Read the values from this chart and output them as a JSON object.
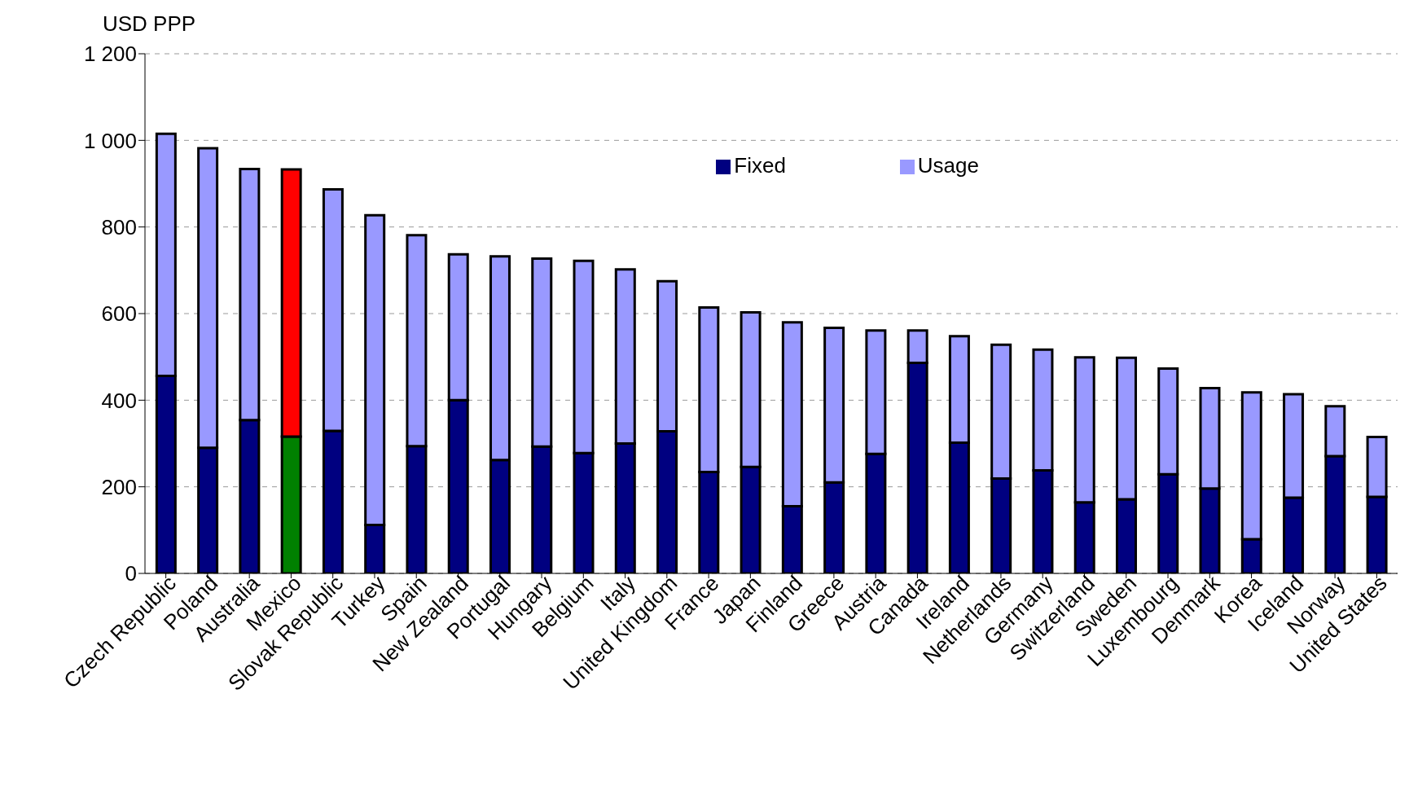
{
  "chart_data": {
    "type": "bar",
    "stacked": true,
    "ylabel": "USD PPP",
    "categories": [
      "Czech Republic",
      "Poland",
      "Australia",
      "Mexico",
      "Slovak Republic",
      "Turkey",
      "Spain",
      "New Zealand",
      "Portugal",
      "Hungary",
      "Belgium",
      "Italy",
      "United Kingdom",
      "France",
      "Japan",
      "Finland",
      "Greece",
      "Austria",
      "Canada",
      "Ireland",
      "Netherlands",
      "Germany",
      "Switzerland",
      "Sweden",
      "Luxembourg",
      "Denmark",
      "Korea",
      "Iceland",
      "Norway",
      "United States"
    ],
    "series": [
      {
        "name": "Fixed",
        "color": "#000080",
        "colors": [
          "#000080",
          "#000080",
          "#000080",
          "#008000",
          "#000080",
          "#000080",
          "#000080",
          "#000080",
          "#000080",
          "#000080",
          "#000080",
          "#000080",
          "#000080",
          "#000080",
          "#000080",
          "#000080",
          "#000080",
          "#000080",
          "#000080",
          "#000080",
          "#000080",
          "#000080",
          "#000080",
          "#000080",
          "#000080",
          "#000080",
          "#000080",
          "#000080",
          "#000080",
          "#000080"
        ],
        "values": [
          456,
          290,
          354,
          316,
          329,
          112,
          294,
          400,
          262,
          293,
          278,
          300,
          328,
          234,
          246,
          155,
          210,
          276,
          486,
          302,
          219,
          238,
          164,
          171,
          229,
          196,
          79,
          175,
          271,
          177
        ]
      },
      {
        "name": "Usage",
        "color": "#9999ff",
        "colors": [
          "#9999ff",
          "#9999ff",
          "#9999ff",
          "#ff0000",
          "#9999ff",
          "#9999ff",
          "#9999ff",
          "#9999ff",
          "#9999ff",
          "#9999ff",
          "#9999ff",
          "#9999ff",
          "#9999ff",
          "#9999ff",
          "#9999ff",
          "#9999ff",
          "#9999ff",
          "#9999ff",
          "#9999ff",
          "#9999ff",
          "#9999ff",
          "#9999ff",
          "#9999ff",
          "#9999ff",
          "#9999ff",
          "#9999ff",
          "#9999ff",
          "#9999ff",
          "#9999ff",
          "#9999ff"
        ],
        "values": [
          559,
          692,
          580,
          617,
          558,
          715,
          487,
          337,
          470,
          434,
          444,
          402,
          347,
          380,
          357,
          425,
          357,
          285,
          75,
          246,
          309,
          279,
          335,
          327,
          244,
          232,
          339,
          239,
          115,
          138
        ]
      }
    ],
    "ylim": [
      0,
      1200
    ],
    "yticks": [
      0,
      200,
      400,
      600,
      800,
      {
        "value": 1000,
        "label": "1 000"
      },
      {
        "value": 1200,
        "label": "1 200"
      }
    ],
    "grid": "y",
    "legend": "top right"
  }
}
